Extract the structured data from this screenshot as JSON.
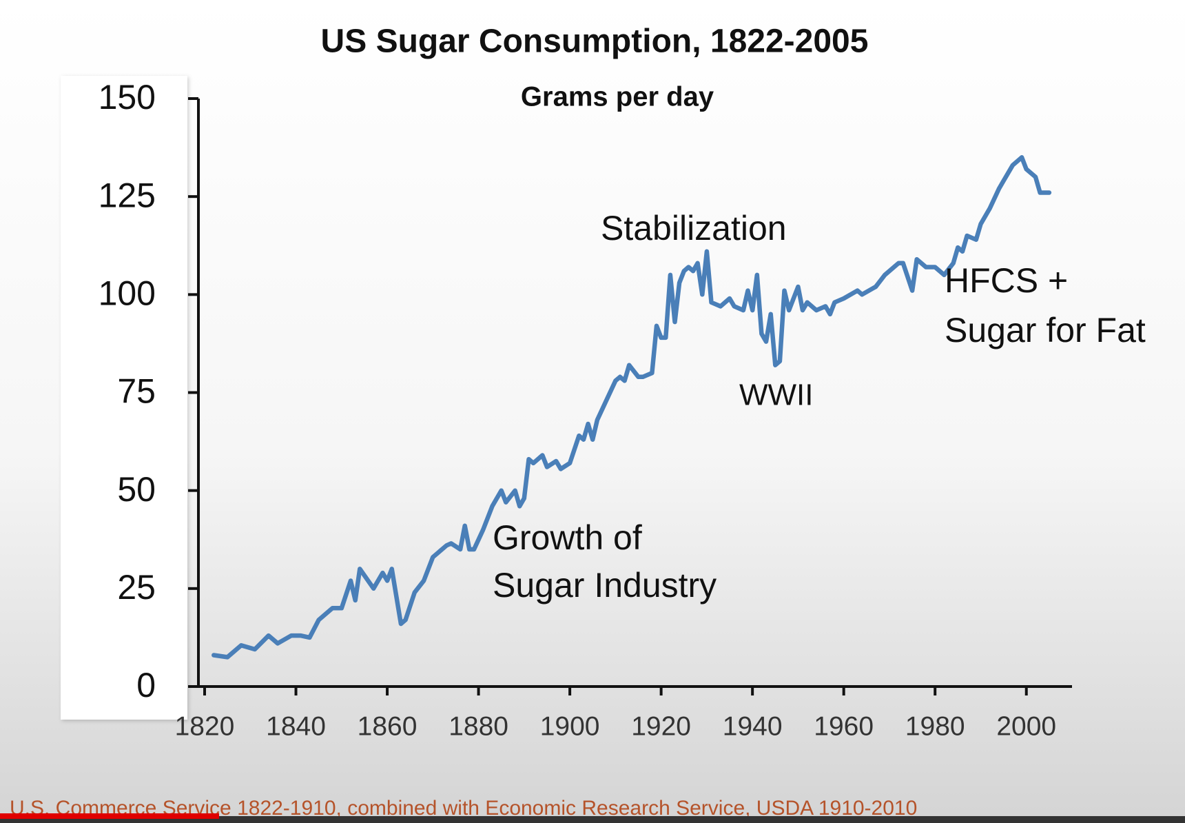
{
  "chart_data": {
    "type": "line",
    "title": "US Sugar Consumption, 1822-2005",
    "subtitle": "Grams per day",
    "x": [
      1822,
      1825,
      1828,
      1831,
      1834,
      1836,
      1839,
      1841,
      1843,
      1845,
      1848,
      1850,
      1852,
      1853,
      1854,
      1857,
      1859,
      1860,
      1861,
      1863,
      1864,
      1866,
      1868,
      1870,
      1873,
      1874,
      1876,
      1877,
      1878,
      1879,
      1881,
      1883,
      1884,
      1885,
      1886,
      1888,
      1889,
      1890,
      1891,
      1892,
      1894,
      1895,
      1897,
      1898,
      1900,
      1902,
      1903,
      1904,
      1905,
      1906,
      1908,
      1910,
      1911,
      1912,
      1913,
      1915,
      1916,
      1918,
      1919,
      1920,
      1921,
      1922,
      1923,
      1924,
      1925,
      1926,
      1927,
      1928,
      1929,
      1930,
      1931,
      1933,
      1935,
      1936,
      1938,
      1939,
      1940,
      1941,
      1942,
      1943,
      1944,
      1945,
      1946,
      1947,
      1948,
      1950,
      1951,
      1952,
      1954,
      1956,
      1957,
      1958,
      1960,
      1963,
      1964,
      1967,
      1969,
      1972,
      1973,
      1975,
      1976,
      1978,
      1980,
      1982,
      1984,
      1985,
      1986,
      1987,
      1989,
      1990,
      1992,
      1994,
      1995,
      1997,
      1999,
      2000,
      2002,
      2003,
      2005
    ],
    "values": [
      8,
      7.5,
      10.5,
      9.5,
      13,
      11,
      13,
      13,
      12.5,
      17,
      20,
      20,
      27,
      22,
      30,
      25,
      29,
      27,
      30,
      16,
      17,
      24,
      27,
      33,
      36,
      36.5,
      35,
      41,
      35,
      35,
      40,
      46,
      48,
      50,
      47,
      50,
      46,
      48,
      58,
      57,
      59,
      56,
      57.5,
      55.5,
      57,
      64,
      63,
      67,
      63,
      68,
      73,
      78,
      79,
      78,
      82,
      79,
      79,
      80,
      92,
      89,
      89,
      105,
      93,
      103,
      106,
      107,
      106,
      108,
      100,
      111,
      98,
      97,
      99,
      97,
      96,
      101,
      96,
      105,
      90,
      88,
      95,
      82,
      83,
      101,
      96,
      102,
      96,
      98,
      96,
      97,
      95,
      98,
      99,
      101,
      100,
      102,
      105,
      108,
      108,
      101,
      109,
      107,
      107,
      105,
      108,
      112,
      111,
      115,
      114,
      118,
      122,
      127,
      129,
      133,
      135,
      132,
      130,
      126,
      126
    ],
    "color": "#4a7fb8",
    "xlim": [
      1820,
      2010
    ],
    "xticks": [
      1820,
      1840,
      1860,
      1880,
      1900,
      1920,
      1940,
      1960,
      1980,
      2000
    ],
    "ylim": [
      0,
      150
    ],
    "yticks": [
      0,
      25,
      50,
      75,
      100,
      125,
      150
    ],
    "annotations": [
      "Stabilization",
      "WWII",
      "HFCS +",
      "Sugar for Fat",
      "Growth of",
      "Sugar Industry"
    ],
    "source": "U.S. Commerce Service 1822-1910, combined with Economic Research Service, USDA 1910-2010"
  }
}
